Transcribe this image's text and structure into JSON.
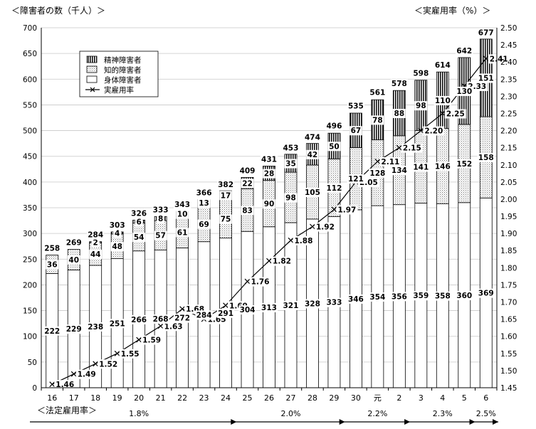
{
  "chart_data": {
    "type": "bar",
    "stacked": true,
    "left_axis_title": "＜障害者の数（千人）＞",
    "right_axis_title": "＜実雇用率（%）＞",
    "y_left": {
      "min": 0,
      "max": 700,
      "step": 50
    },
    "y_right": {
      "min": 1.45,
      "max": 2.5,
      "step": 0.05
    },
    "categories": [
      "16",
      "17",
      "18",
      "19",
      "20",
      "21",
      "22",
      "23",
      "24",
      "25",
      "26",
      "27",
      "28",
      "29",
      "30",
      "元",
      "2",
      "3",
      "4",
      "5",
      "6"
    ],
    "series": [
      {
        "name": "身体障害者",
        "pattern": "blank",
        "values": [
          222,
          229,
          238,
          251,
          266,
          268,
          272,
          284,
          291,
          304,
          313,
          321,
          328,
          333,
          346,
          354,
          356,
          359,
          358,
          360,
          369
        ]
      },
      {
        "name": "知的障害者",
        "pattern": "dotted",
        "values": [
          36,
          40,
          44,
          48,
          54,
          57,
          61,
          69,
          75,
          83,
          90,
          98,
          105,
          112,
          121,
          128,
          134,
          141,
          146,
          152,
          158
        ]
      },
      {
        "name": "精神障害者",
        "pattern": "vertical-stripes",
        "values": [
          0,
          0,
          2,
          4,
          6,
          8,
          10,
          13,
          17,
          22,
          28,
          35,
          42,
          50,
          67,
          78,
          88,
          98,
          110,
          130,
          151
        ]
      }
    ],
    "totals": [
      258,
      269,
      284,
      303,
      326,
      333,
      343,
      366,
      382,
      409,
      431,
      453,
      474,
      496,
      535,
      561,
      578,
      598,
      614,
      642,
      677
    ],
    "line_series": {
      "name": "実雇用率",
      "axis": "right",
      "marker": "x",
      "values": [
        1.46,
        1.49,
        1.52,
        1.55,
        1.59,
        1.63,
        1.68,
        1.65,
        1.69,
        1.76,
        1.82,
        1.88,
        1.92,
        1.97,
        2.05,
        2.11,
        2.15,
        2.2,
        2.25,
        2.33,
        2.41
      ]
    },
    "legend": {
      "placement": "top-left",
      "order": [
        "精神障害者",
        "知的障害者",
        "身体障害者",
        "実雇用率"
      ]
    },
    "statutory_rate": {
      "title": "＜法定雇用率＞",
      "periods": [
        {
          "label": "1.8%",
          "from": "16",
          "to": "24"
        },
        {
          "label": "2.0%",
          "from": "25",
          "to": "29"
        },
        {
          "label": "2.2%",
          "from": "30",
          "to": "2"
        },
        {
          "label": "2.3%",
          "from": "3",
          "to": "5"
        },
        {
          "label": "2.5%",
          "from": "6",
          "to": "6"
        }
      ]
    }
  }
}
